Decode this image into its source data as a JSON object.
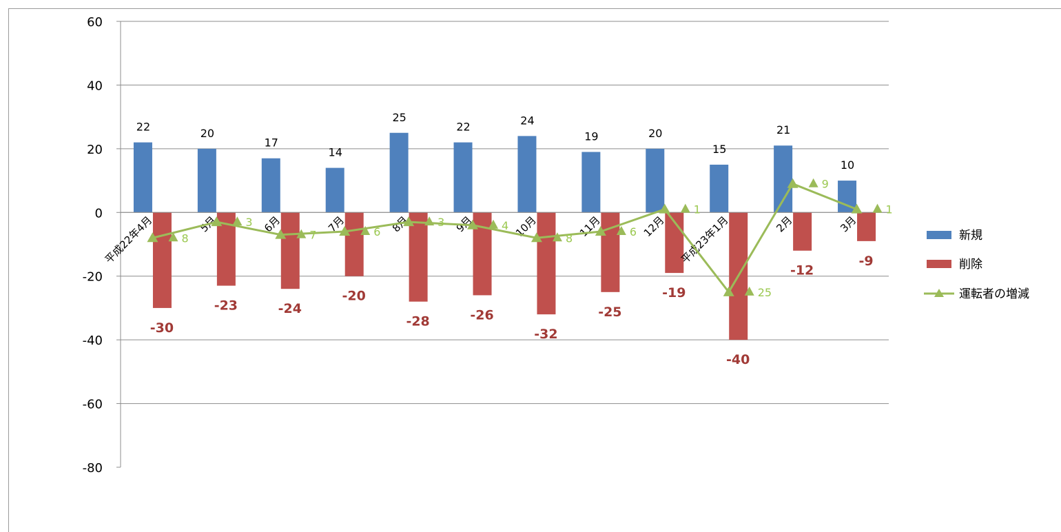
{
  "chart_data": {
    "type": "bar",
    "categories": [
      "平成22年4月",
      "5月",
      "6月",
      "7月",
      "8月",
      "9月",
      "10月",
      "11月",
      "12月",
      "平成23年1月",
      "2月",
      "3月"
    ],
    "series": [
      {
        "name": "新規",
        "type": "bar",
        "color": "#4f81bd",
        "values": [
          22,
          20,
          17,
          14,
          25,
          22,
          24,
          19,
          20,
          15,
          21,
          10
        ]
      },
      {
        "name": "削除",
        "type": "bar",
        "color": "#c0504d",
        "values": [
          -30,
          -23,
          -24,
          -20,
          -28,
          -26,
          -32,
          -25,
          -19,
          -40,
          -12,
          -9
        ]
      },
      {
        "name": "運転者の増減",
        "type": "line",
        "color": "#9bbb59",
        "values": [
          -8,
          -3,
          -7,
          -6,
          -3,
          -4,
          -8,
          -6,
          1,
          -25,
          9,
          1
        ],
        "labels": [
          "8",
          "3",
          "7",
          "6",
          "3",
          "4",
          "8",
          "6",
          "1",
          "25",
          "9",
          "1"
        ]
      }
    ],
    "yticks": [
      "60",
      "40",
      "20",
      "0",
      "-20",
      "-40",
      "-60",
      "-80"
    ],
    "ylim": [
      -80,
      60
    ],
    "grid": true,
    "legend_position": "right",
    "title": "",
    "xlabel": "",
    "ylabel": ""
  }
}
